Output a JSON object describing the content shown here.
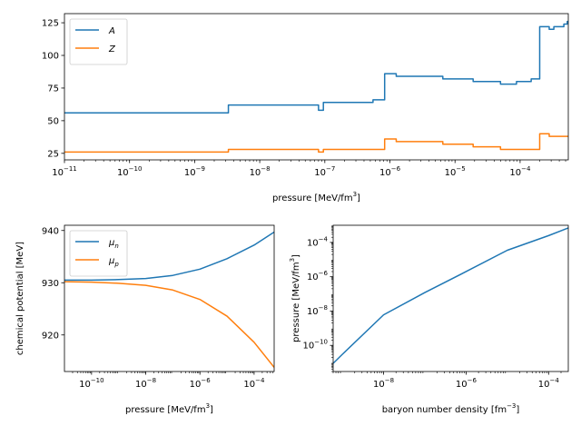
{
  "colors": {
    "blue": "#1f77b4",
    "orange": "#ff7f0e"
  },
  "chart_data": [
    {
      "id": "top",
      "type": "line",
      "step": true,
      "xscale": "log",
      "yscale": "linear",
      "xlim": [
        1e-11,
        0.00055
      ],
      "ylim": [
        20,
        132
      ],
      "xlabel": "pressure [MeV/fm^3]",
      "ylabel": "",
      "xticks": [
        {
          "v": 1e-11,
          "base": "10",
          "exp": "−11"
        },
        {
          "v": 1e-10,
          "base": "10",
          "exp": "−10"
        },
        {
          "v": 1e-09,
          "base": "10",
          "exp": "−9"
        },
        {
          "v": 1e-08,
          "base": "10",
          "exp": "−8"
        },
        {
          "v": 1e-07,
          "base": "10",
          "exp": "−7"
        },
        {
          "v": 1e-06,
          "base": "10",
          "exp": "−6"
        },
        {
          "v": 1e-05,
          "base": "10",
          "exp": "−5"
        },
        {
          "v": 0.0001,
          "base": "10",
          "exp": "−4"
        }
      ],
      "yticks": [
        {
          "v": 25,
          "label": "25"
        },
        {
          "v": 50,
          "label": "50"
        },
        {
          "v": 75,
          "label": "75"
        },
        {
          "v": 100,
          "label": "100"
        },
        {
          "v": 125,
          "label": "125"
        }
      ],
      "legend": {
        "position": "upper left"
      },
      "series": [
        {
          "name": "A",
          "color": "#1f77b4",
          "points": [
            [
              1e-11,
              56
            ],
            [
              3.3e-09,
              56
            ],
            [
              3.3e-09,
              62
            ],
            [
              8e-08,
              62
            ],
            [
              8e-08,
              58
            ],
            [
              9.5e-08,
              58
            ],
            [
              9.5e-08,
              64
            ],
            [
              5.5e-07,
              64
            ],
            [
              5.5e-07,
              66
            ],
            [
              8.3e-07,
              66
            ],
            [
              8.3e-07,
              86
            ],
            [
              1.25e-06,
              86
            ],
            [
              1.25e-06,
              84
            ],
            [
              6.5e-06,
              84
            ],
            [
              6.5e-06,
              82
            ],
            [
              1.9e-05,
              82
            ],
            [
              1.9e-05,
              80
            ],
            [
              3.5e-05,
              80
            ],
            [
              3.5e-05,
              80
            ],
            [
              5e-05,
              80
            ],
            [
              5e-05,
              78
            ],
            [
              8.8e-05,
              78
            ],
            [
              8.8e-05,
              80
            ],
            [
              0.000148,
              80
            ],
            [
              0.000148,
              82
            ],
            [
              0.0002,
              82
            ],
            [
              0.0002,
              122
            ],
            [
              0.00028,
              122
            ],
            [
              0.00028,
              120
            ],
            [
              0.00033,
              120
            ],
            [
              0.00033,
              122
            ],
            [
              0.00047,
              122
            ],
            [
              0.00047,
              124
            ],
            [
              0.00053,
              124
            ],
            [
              0.00053,
              126
            ],
            [
              0.00055,
              126
            ]
          ]
        },
        {
          "name": "Z",
          "color": "#ff7f0e",
          "points": [
            [
              1e-11,
              26
            ],
            [
              3.3e-09,
              26
            ],
            [
              3.3e-09,
              28
            ],
            [
              8e-08,
              28
            ],
            [
              8e-08,
              26
            ],
            [
              9.5e-08,
              26
            ],
            [
              9.5e-08,
              28
            ],
            [
              8.3e-07,
              28
            ],
            [
              8.3e-07,
              36
            ],
            [
              1.25e-06,
              36
            ],
            [
              1.25e-06,
              34
            ],
            [
              6.5e-06,
              34
            ],
            [
              6.5e-06,
              32
            ],
            [
              1.9e-05,
              32
            ],
            [
              1.9e-05,
              30
            ],
            [
              5e-05,
              30
            ],
            [
              5e-05,
              28
            ],
            [
              0.0002,
              28
            ],
            [
              0.0002,
              40
            ],
            [
              0.00028,
              40
            ],
            [
              0.00028,
              38
            ],
            [
              0.00055,
              38
            ]
          ]
        }
      ]
    },
    {
      "id": "bottom-left",
      "type": "line",
      "xscale": "log",
      "yscale": "linear",
      "xlim": [
        1e-11,
        0.00055
      ],
      "ylim": [
        913,
        941
      ],
      "xlabel": "pressure [MeV/fm^3]",
      "ylabel": "chemical potential [MeV]",
      "xticks": [
        {
          "v": 1e-10,
          "base": "10",
          "exp": "−10"
        },
        {
          "v": 1e-08,
          "base": "10",
          "exp": "−8"
        },
        {
          "v": 1e-06,
          "base": "10",
          "exp": "−6"
        },
        {
          "v": 0.0001,
          "base": "10",
          "exp": "−4"
        }
      ],
      "yticks": [
        {
          "v": 920,
          "label": "920"
        },
        {
          "v": 930,
          "label": "930"
        },
        {
          "v": 940,
          "label": "940"
        }
      ],
      "legend": {
        "position": "upper left"
      },
      "series": [
        {
          "name": "μ_n",
          "color": "#1f77b4",
          "points": [
            [
              1e-11,
              930.5
            ],
            [
              1e-10,
              930.5
            ],
            [
              1e-09,
              930.6
            ],
            [
              1e-08,
              930.8
            ],
            [
              1e-07,
              931.4
            ],
            [
              1e-06,
              932.6
            ],
            [
              1e-05,
              934.6
            ],
            [
              0.0001,
              937.2
            ],
            [
              0.00055,
              939.7
            ]
          ]
        },
        {
          "name": "μ_p",
          "color": "#ff7f0e",
          "points": [
            [
              1e-11,
              930.2
            ],
            [
              1e-10,
              930.1
            ],
            [
              1e-09,
              929.9
            ],
            [
              1e-08,
              929.5
            ],
            [
              1e-07,
              928.6
            ],
            [
              1e-06,
              926.8
            ],
            [
              1e-05,
              923.6
            ],
            [
              0.0001,
              918.6
            ],
            [
              0.00055,
              913.8
            ]
          ]
        }
      ]
    },
    {
      "id": "bottom-right",
      "type": "line",
      "xscale": "log",
      "yscale": "log",
      "xlim": [
        6e-10,
        0.0003
      ],
      "ylim": [
        3e-12,
        0.001
      ],
      "xlabel": "baryon number density [fm^-3]",
      "ylabel": "pressure [MeV/fm^3]",
      "xticks": [
        {
          "v": 1e-08,
          "base": "10",
          "exp": "−8"
        },
        {
          "v": 1e-06,
          "base": "10",
          "exp": "−6"
        },
        {
          "v": 0.0001,
          "base": "10",
          "exp": "−4"
        }
      ],
      "yticks": [
        {
          "v": 1e-10,
          "base": "10",
          "exp": "−10"
        },
        {
          "v": 1e-08,
          "base": "10",
          "exp": "−8"
        },
        {
          "v": 1e-06,
          "base": "10",
          "exp": "−6"
        },
        {
          "v": 0.0001,
          "base": "10",
          "exp": "−4"
        }
      ],
      "series": [
        {
          "name": "",
          "color": "#1f77b4",
          "points": [
            [
              6e-10,
              9e-12
            ],
            [
              1e-09,
              3e-11
            ],
            [
              1e-08,
              6e-09
            ],
            [
              1e-07,
              1.2e-07
            ],
            [
              1e-06,
              2e-06
            ],
            [
              1e-05,
              3.5e-05
            ],
            [
              0.0001,
              0.00025
            ],
            [
              0.0003,
              0.0007
            ]
          ]
        }
      ]
    }
  ]
}
